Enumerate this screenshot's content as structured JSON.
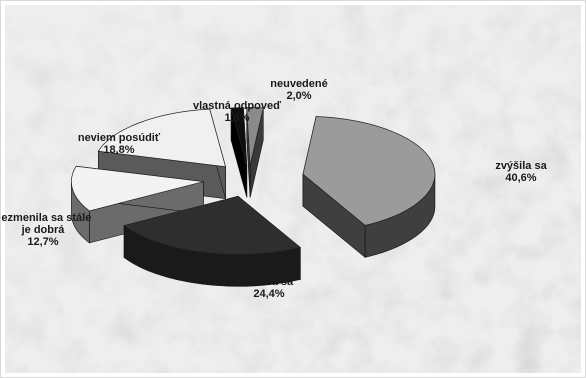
{
  "chart_data": {
    "type": "pie",
    "style": "3d-exploded",
    "title": "",
    "slices": [
      {
        "label": "zvýšila sa",
        "value": 40.6,
        "value_label": "40,6%",
        "top_color": "#9b9b9b",
        "side_color": "#3f3f3f"
      },
      {
        "label": "znížila sa",
        "value": 24.4,
        "value_label": "24,4%",
        "top_color": "#2e2e2e",
        "side_color": "#1a1a1a"
      },
      {
        "label": "nezmenila sa stále je dobrá",
        "value": 12.7,
        "value_label": "12,7%",
        "top_color": "#f3f3f3",
        "side_color": "#6b6b6b"
      },
      {
        "label": "neviem posúdiť",
        "value": 18.8,
        "value_label": "18,8%",
        "top_color": "#f0f0f0",
        "side_color": "#5a5a5a"
      },
      {
        "label": "vlastná odpoveď",
        "value": 1.5,
        "value_label": "1,5%",
        "top_color": "#0e0e0e",
        "side_color": "#000000"
      },
      {
        "label": "neuvedené",
        "value": 2.0,
        "value_label": "2,0%",
        "top_color": "#8a8a8a",
        "side_color": "#3a3a3a"
      }
    ],
    "legend": "none",
    "data_labels": "outside",
    "background": "textured-gray"
  }
}
